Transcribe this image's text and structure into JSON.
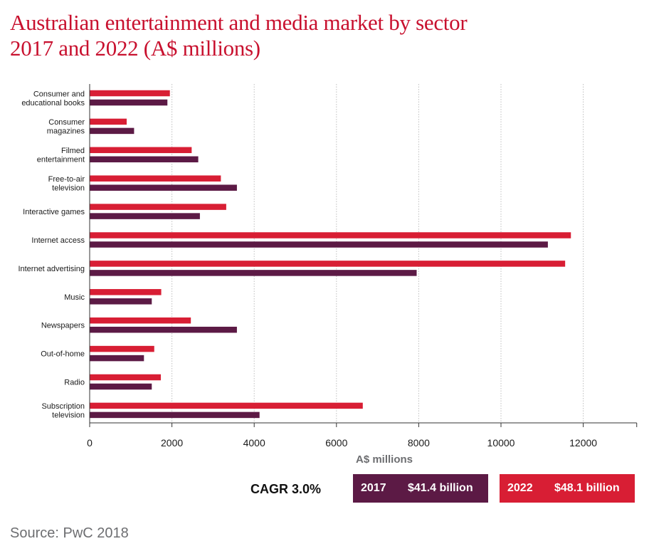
{
  "header": {
    "title_line1": "Australian entertainment and media market by sector",
    "title_line2": "2017 and 2022 (A$ millions)"
  },
  "colors": {
    "year_2017": "#5c1a45",
    "year_2022": "#d81e34",
    "grid": "#bfbfbf",
    "axis": "#333333"
  },
  "chart_data": {
    "type": "bar",
    "orientation": "horizontal",
    "title": "Australian entertainment and media market by sector 2017 and 2022 (A$ millions)",
    "xlabel": "A$ millions",
    "ylabel": "",
    "xlim": [
      0,
      13300
    ],
    "xticks": [
      0,
      2000,
      4000,
      6000,
      8000,
      10000,
      12000
    ],
    "grid": true,
    "categories": [
      [
        "Consumer and",
        "educational books"
      ],
      [
        "Consumer",
        "magazines"
      ],
      [
        "Filmed",
        "entertainment"
      ],
      [
        "Free-to-air",
        "television"
      ],
      [
        "Interactive games"
      ],
      [
        "Internet access"
      ],
      [
        "Internet advertising"
      ],
      [
        "Music"
      ],
      [
        "Newspapers"
      ],
      [
        "Out-of-home"
      ],
      [
        "Radio"
      ],
      [
        "Subscription",
        "television"
      ]
    ],
    "series": [
      {
        "name": "2022",
        "values": [
          1950,
          900,
          2480,
          3190,
          3320,
          11700,
          11560,
          1740,
          2460,
          1570,
          1730,
          6640
        ]
      },
      {
        "name": "2017",
        "values": [
          1890,
          1080,
          2640,
          3580,
          2680,
          11140,
          7950,
          1510,
          3580,
          1320,
          1510,
          4130
        ]
      }
    ]
  },
  "legend": {
    "cagr_label": "CAGR 3.0%",
    "items": [
      {
        "year": "2017",
        "value": "$41.4 billion"
      },
      {
        "year": "2022",
        "value": "$48.1 billion"
      }
    ]
  },
  "footer": {
    "source": "Source: PwC 2018"
  }
}
